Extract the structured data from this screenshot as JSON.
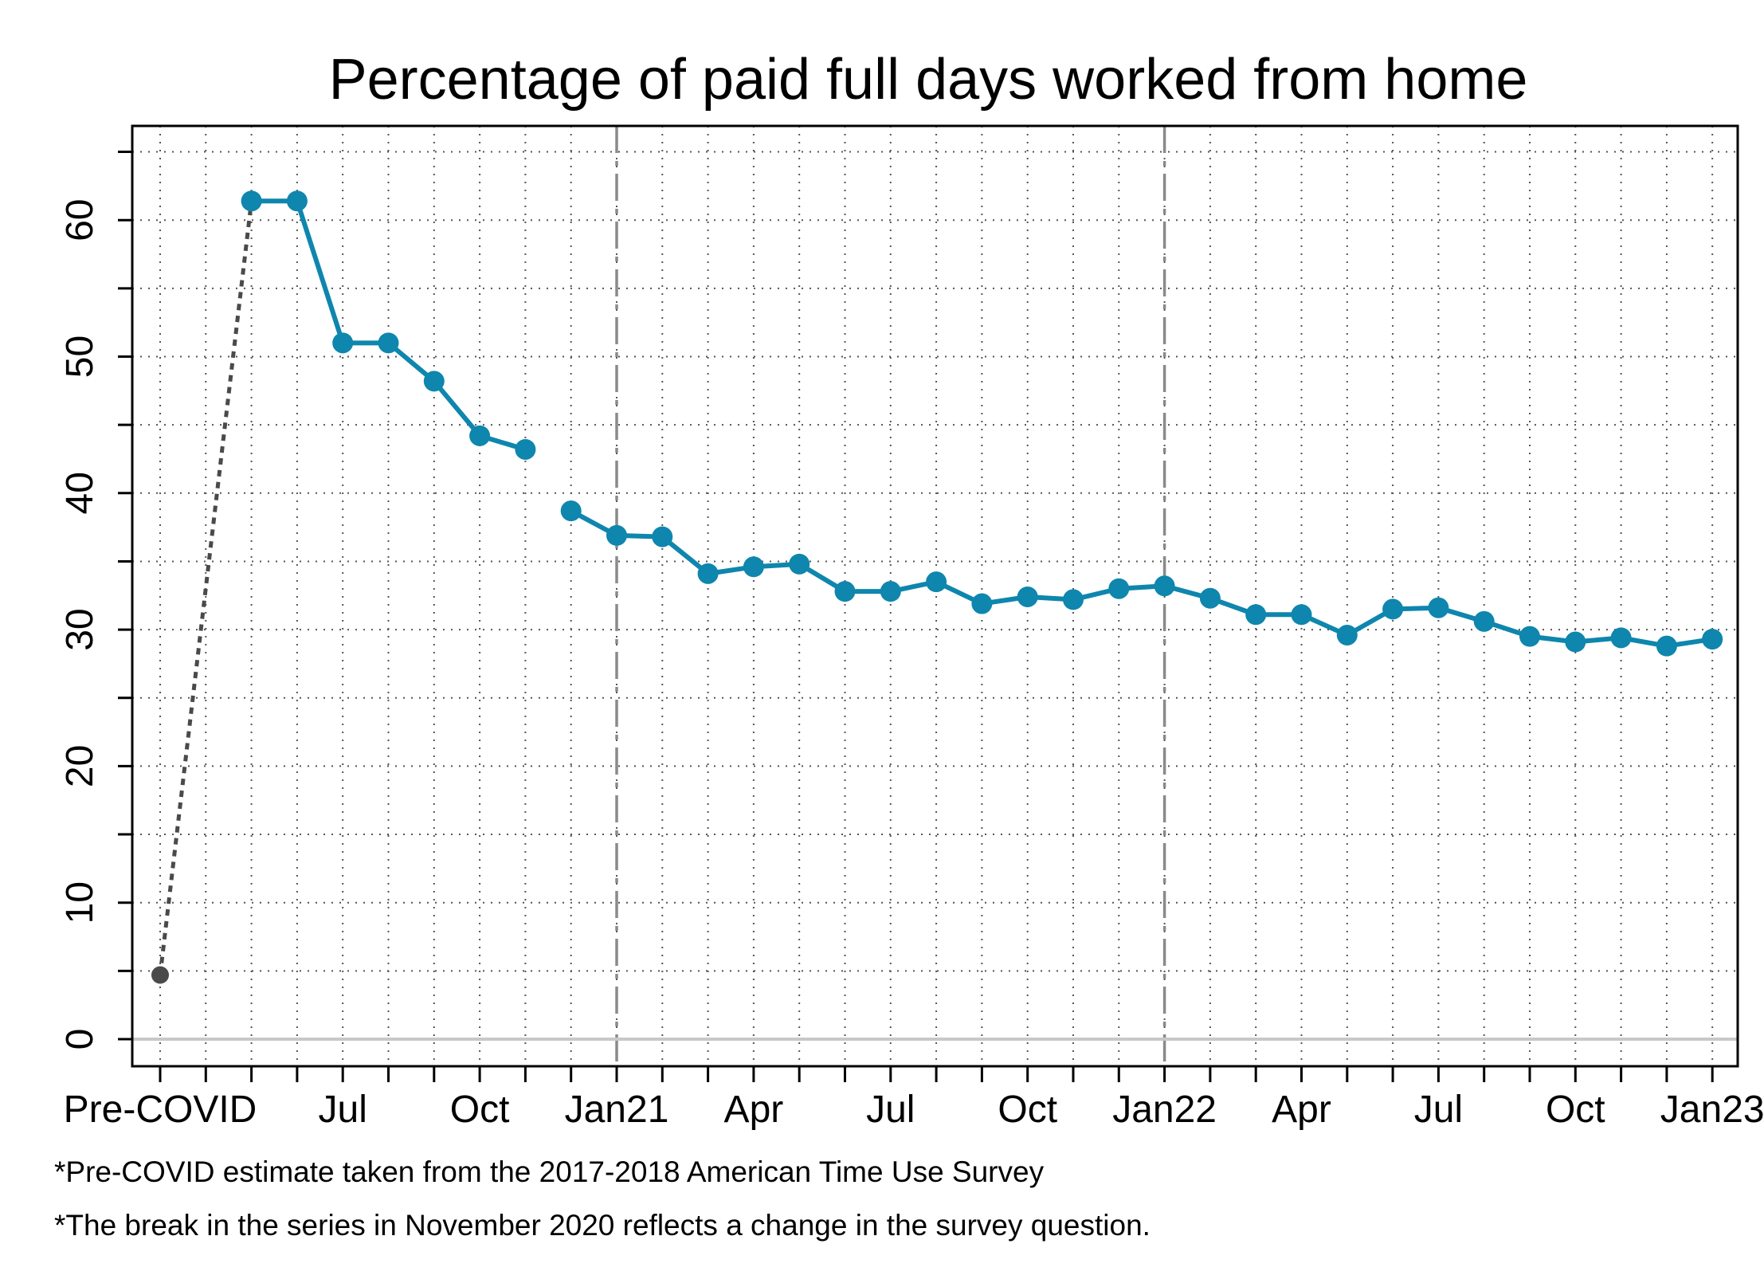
{
  "chart_data": {
    "type": "line",
    "title": "Percentage of paid full days worked from home",
    "xlabel": "",
    "ylabel": "",
    "ylim": [
      -2,
      65
    ],
    "yticks": [
      0,
      10,
      20,
      30,
      40,
      50,
      60
    ],
    "x_tick_labels": [
      "Pre-COVID",
      "Jul",
      "Oct",
      "Jan21",
      "Apr",
      "Jul",
      "Oct",
      "Jan22",
      "Apr",
      "Jul",
      "Oct",
      "Jan23"
    ],
    "grid": true,
    "vertical_reference_lines": [
      "Jan21",
      "Jan22"
    ],
    "colors": {
      "series": "#0e86ad",
      "pre_covid": "#4a4a4a",
      "zero_line": "#c8c8c8",
      "ref_line": "#8a8a8a",
      "grid": "#555555"
    },
    "pre_covid": {
      "label": "Pre-COVID",
      "value": 4.7
    },
    "series": [
      {
        "segment": "before-break",
        "x": [
          "2020-05",
          "2020-06",
          "2020-07",
          "2020-08",
          "2020-09",
          "2020-10",
          "2020-11"
        ],
        "values": [
          61.4,
          61.4,
          51.0,
          51.0,
          48.2,
          44.2,
          43.2
        ]
      },
      {
        "segment": "after-break",
        "x": [
          "2020-12",
          "2021-01",
          "2021-02",
          "2021-03",
          "2021-04",
          "2021-05",
          "2021-06",
          "2021-07",
          "2021-08",
          "2021-09",
          "2021-10",
          "2021-11",
          "2021-12",
          "2022-01",
          "2022-02",
          "2022-03",
          "2022-04",
          "2022-05",
          "2022-06",
          "2022-07",
          "2022-08",
          "2022-09",
          "2022-10",
          "2022-11",
          "2022-12",
          "2023-01"
        ],
        "values": [
          38.7,
          36.9,
          36.8,
          34.1,
          34.6,
          34.8,
          32.8,
          32.8,
          33.5,
          31.9,
          32.4,
          32.2,
          33.0,
          33.2,
          32.3,
          31.1,
          31.1,
          29.6,
          31.5,
          31.6,
          30.6,
          29.5,
          29.1,
          29.4,
          28.8,
          29.3
        ]
      }
    ],
    "notes": [
      "*Pre-COVID estimate taken from the 2017-2018 American Time Use Survey",
      "*The break in the series in November 2020 reflects a change in the survey question."
    ]
  }
}
